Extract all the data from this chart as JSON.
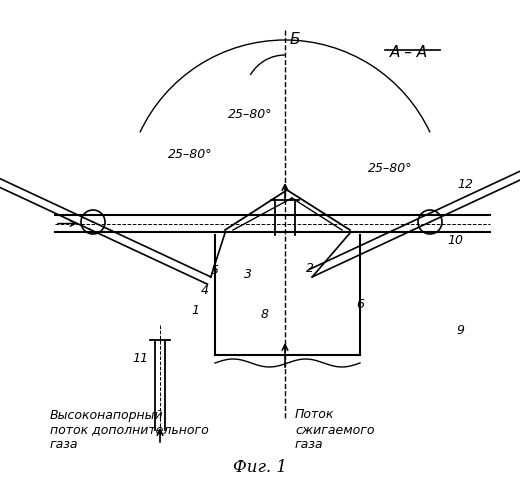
{
  "title": "Фиг. 1",
  "label_AA": "А – А",
  "label_B": "Б",
  "angle1": "25–80°",
  "angle2": "25–80°",
  "angle3": "25–80°",
  "text_left1": "Высоконапорный",
  "text_left2": "поток дополнительного",
  "text_left3": "газа",
  "text_right1": "Поток",
  "text_right2": "сжигаемого",
  "text_right3": "газа",
  "part_labels": [
    "1",
    "2",
    "3",
    "4",
    "5",
    "6",
    "8",
    "9",
    "10",
    "11",
    "12"
  ],
  "bg_color": "#ffffff",
  "line_color": "#000000"
}
